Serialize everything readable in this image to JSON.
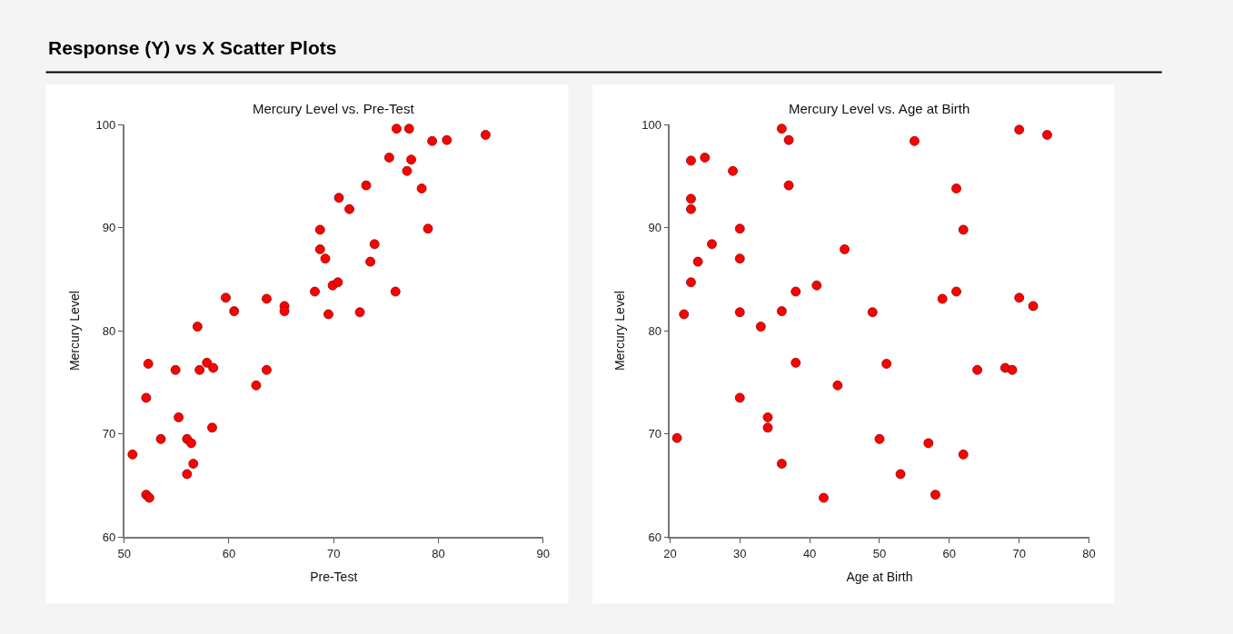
{
  "chart_data": [
    {
      "type": "scatter",
      "title": "Mercury Level vs. Pre-Test",
      "xlabel": "Pre-Test",
      "ylabel": "Mercury Level",
      "annotations": [
        "Response (Y) vs X Scatter Plots"
      ],
      "x": [
        50.8,
        52.1,
        52.3,
        52.1,
        52.4,
        53.5,
        54.9,
        55.2,
        56.0,
        56.4,
        56.0,
        56.6,
        57.0,
        57.2,
        57.9,
        58.5,
        58.4,
        59.7,
        60.5,
        62.6,
        63.6,
        63.6,
        65.3,
        65.3,
        68.2,
        68.7,
        68.7,
        69.2,
        69.5,
        69.9,
        70.4,
        70.5,
        71.5,
        72.5,
        73.1,
        73.5,
        73.9,
        75.3,
        75.9,
        76.0,
        77.0,
        77.2,
        77.4,
        78.4,
        79.0,
        79.4,
        80.8,
        84.5
      ],
      "series": [
        {
          "color": "#ff0000",
          "values": [
            68.0,
            73.5,
            76.8,
            64.1,
            63.8,
            69.5,
            76.2,
            71.6,
            69.5,
            69.1,
            66.1,
            67.1,
            80.4,
            76.2,
            76.9,
            76.4,
            70.6,
            83.2,
            81.9,
            74.7,
            83.1,
            76.2,
            82.4,
            81.9,
            83.8,
            89.8,
            87.9,
            87.0,
            81.6,
            84.4,
            84.7,
            92.9,
            91.8,
            81.8,
            94.1,
            86.7,
            88.4,
            96.8,
            83.8,
            99.6,
            95.5,
            99.6,
            96.6,
            93.8,
            89.9,
            98.4,
            98.5,
            99.0
          ]
        }
      ],
      "xlim": [
        50,
        90
      ],
      "xticks": [
        50,
        60,
        70,
        80,
        90
      ],
      "ylim": [
        60,
        100
      ],
      "yticks": [
        60,
        70,
        80,
        90,
        100
      ],
      "marker": "circle"
    },
    {
      "type": "scatter",
      "title": "Mercury Level vs. Age at Birth",
      "xlabel": "Age at Birth",
      "ylabel": "Mercury Level",
      "x": [
        21,
        22,
        23,
        23,
        23,
        23,
        24,
        25,
        26,
        29,
        30,
        30,
        30,
        30,
        33,
        34,
        34,
        36,
        36,
        36,
        37,
        37,
        38,
        38,
        41,
        42,
        44,
        45,
        49,
        50,
        51,
        53,
        55,
        57,
        58,
        59,
        61,
        61,
        62,
        62,
        64,
        68,
        69,
        70,
        70,
        72,
        74
      ],
      "series": [
        {
          "color": "#ff0000",
          "values": [
            69.6,
            81.6,
            96.5,
            92.8,
            91.8,
            84.7,
            86.7,
            96.8,
            88.4,
            95.5,
            89.9,
            87.0,
            81.8,
            73.5,
            80.4,
            71.6,
            70.6,
            99.6,
            81.9,
            67.1,
            98.5,
            94.1,
            83.8,
            76.9,
            84.4,
            63.8,
            74.7,
            87.9,
            81.8,
            69.5,
            76.8,
            66.1,
            98.4,
            69.1,
            64.1,
            83.1,
            93.8,
            83.8,
            89.8,
            68.0,
            76.2,
            76.4,
            76.2,
            99.5,
            83.2,
            82.4,
            99.0
          ]
        }
      ],
      "xlim": [
        20,
        80
      ],
      "xticks": [
        20,
        30,
        40,
        50,
        60,
        70,
        80
      ],
      "ylim": [
        60,
        100
      ],
      "yticks": [
        60,
        70,
        80,
        90,
        100
      ],
      "marker": "circle"
    }
  ]
}
